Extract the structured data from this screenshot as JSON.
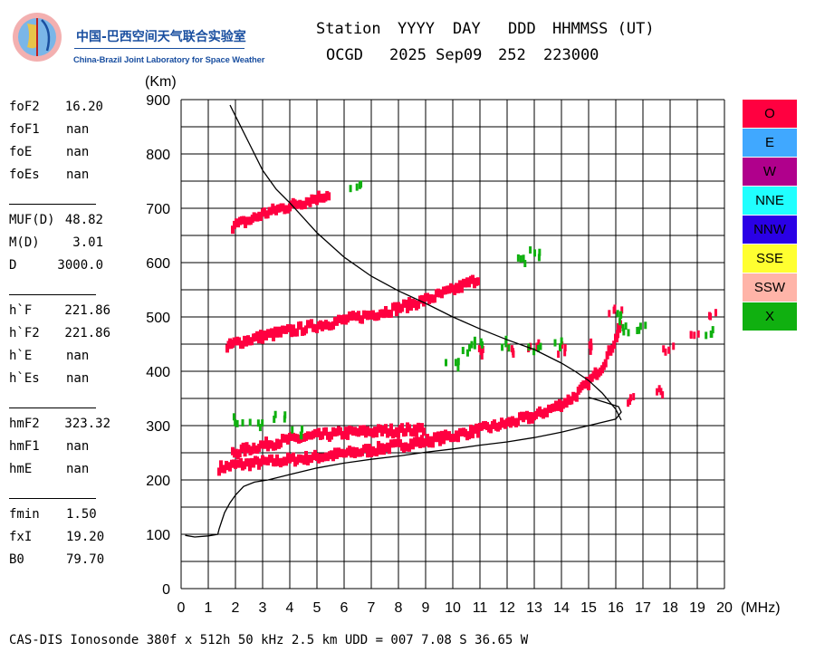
{
  "logo": {
    "cn_text": "中国-巴西空间天气联合实验室",
    "en_text": "China-Brazil Joint Laboratory for Space Weather"
  },
  "header": {
    "station_label": "Station",
    "year_label": "YYYY",
    "day_label": "DAY",
    "ddd_label": "DDD",
    "time_label": "HHMMSS (UT)",
    "station": "OCGD",
    "date": "2025 Sep09",
    "doy": "252",
    "time": "223000"
  },
  "params": {
    "foF2": {
      "label": "foF2",
      "value": "16.20"
    },
    "foF1": {
      "label": "foF1",
      "value": "nan"
    },
    "foE": {
      "label": "foE",
      "value": "nan"
    },
    "foEs": {
      "label": "foEs",
      "value": "nan"
    },
    "MUF": {
      "label": "MUF(D)",
      "value": "48.82"
    },
    "MD": {
      "label": "M(D)",
      "value": "3.01"
    },
    "D": {
      "label": "D",
      "value": "3000.0"
    },
    "hF": {
      "label": "h`F",
      "value": "221.86"
    },
    "hF2": {
      "label": "h`F2",
      "value": "221.86"
    },
    "hE": {
      "label": "h`E",
      "value": "nan"
    },
    "hEs": {
      "label": "h`Es",
      "value": "nan"
    },
    "hmF2": {
      "label": "hmF2",
      "value": "323.32"
    },
    "hmF1": {
      "label": "hmF1",
      "value": "nan"
    },
    "hmE": {
      "label": "hmE",
      "value": "nan"
    },
    "fmin": {
      "label": "fmin",
      "value": "1.50"
    },
    "fxI": {
      "label": "fxI",
      "value": "19.20"
    },
    "B0": {
      "label": "B0",
      "value": "79.70"
    }
  },
  "legend": [
    {
      "label": "O",
      "color": "#ff0040"
    },
    {
      "label": "E",
      "color": "#40a8ff"
    },
    {
      "label": "W",
      "color": "#b0008c"
    },
    {
      "label": "NNE",
      "color": "#20ffff"
    },
    {
      "label": "NNW",
      "color": "#2a00e6"
    },
    {
      "label": "SSE",
      "color": "#ffff30"
    },
    {
      "label": "SSW",
      "color": "#ffb4a8"
    },
    {
      "label": "X",
      "color": "#10b010"
    }
  ],
  "footer": "CAS-DIS Ionosonde 380f x 512h 50 kHz 2.5 km UDD = 007 7.08 S 36.65 W",
  "chart_data": {
    "type": "scatter",
    "title": "",
    "xlabel": "(MHz)",
    "ylabel": "(Km)",
    "xlim": [
      0,
      20
    ],
    "ylim": [
      0,
      900
    ],
    "xticks": [
      "0",
      "1",
      "2",
      "3",
      "4",
      "5",
      "6",
      "7",
      "8",
      "9",
      "10",
      "11",
      "12",
      "13",
      "14",
      "15",
      "16",
      "17",
      "18",
      "19",
      "20"
    ],
    "yticks": [
      "0",
      "100",
      "200",
      "300",
      "400",
      "500",
      "600",
      "700",
      "800",
      "900"
    ],
    "grid": true,
    "legend_position": "right",
    "series": [
      {
        "name": "O",
        "color": "#ff0040",
        "point_sets": [
          {
            "comment": "O-mode F trace",
            "points": [
              [
                1.4,
                223
              ],
              [
                2,
                228
              ],
              [
                3,
                233
              ],
              [
                4,
                238
              ],
              [
                5,
                243
              ],
              [
                6,
                249
              ],
              [
                7,
                256
              ],
              [
                8,
                264
              ],
              [
                9,
                272
              ],
              [
                10,
                282
              ],
              [
                11,
                293
              ],
              [
                12,
                305
              ],
              [
                13,
                318
              ],
              [
                14,
                340
              ],
              [
                14.5,
                355
              ],
              [
                15,
                380
              ],
              [
                15.5,
                410
              ],
              [
                16,
                460
              ],
              [
                16.2,
                490
              ]
            ]
          },
          {
            "comment": "upper F echo",
            "points": [
              [
                1.9,
                250
              ],
              [
                3,
                265
              ],
              [
                4,
                275
              ],
              [
                5,
                282
              ],
              [
                6,
                287
              ],
              [
                7,
                290
              ],
              [
                8,
                292
              ],
              [
                9,
                295
              ]
            ]
          },
          {
            "comment": "multiple hop 2F",
            "points": [
              [
                1.7,
                445
              ],
              [
                2,
                453
              ],
              [
                3,
                465
              ],
              [
                4,
                475
              ],
              [
                5,
                485
              ],
              [
                6,
                495
              ],
              [
                7,
                505
              ],
              [
                8,
                517
              ],
              [
                9,
                532
              ],
              [
                10,
                550
              ],
              [
                11,
                572
              ]
            ]
          },
          {
            "comment": "3F",
            "points": [
              [
                1.9,
                668
              ],
              [
                2.5,
                678
              ],
              [
                3,
                690
              ],
              [
                3.5,
                698
              ],
              [
                4,
                705
              ],
              [
                4.5,
                712
              ],
              [
                5,
                720
              ],
              [
                5.5,
                728
              ]
            ]
          },
          {
            "comment": "spread clusters",
            "points": [
              [
                11,
                435
              ],
              [
                12,
                440
              ],
              [
                13,
                445
              ],
              [
                14,
                440
              ],
              [
                15,
                445
              ],
              [
                16.5,
                350
              ],
              [
                17.5,
                360
              ],
              [
                18,
                440
              ],
              [
                19,
                470
              ],
              [
                19.5,
                500
              ],
              [
                16,
                510
              ]
            ]
          }
        ]
      },
      {
        "name": "X",
        "color": "#10b010",
        "point_sets": [
          {
            "comment": "X-mode scattered points",
            "points": [
              [
                2.2,
                310
              ],
              [
                2.8,
                300
              ],
              [
                3.6,
                320
              ],
              [
                4.3,
                290
              ],
              [
                10.5,
                440
              ],
              [
                11,
                450
              ],
              [
                12,
                450
              ],
              [
                13,
                445
              ],
              [
                14,
                450
              ],
              [
                16,
                500
              ],
              [
                16.5,
                480
              ],
              [
                17,
                480
              ],
              [
                19.5,
                470
              ],
              [
                12.5,
                600
              ],
              [
                13,
                615
              ],
              [
                6.5,
                740
              ],
              [
                10,
                415
              ]
            ]
          }
        ]
      }
    ],
    "model_profile": {
      "name": "profile",
      "points": [
        [
          1.8,
          890
        ],
        [
          2.5,
          820
        ],
        [
          3,
          770
        ],
        [
          3.5,
          735
        ],
        [
          4,
          710
        ],
        [
          5,
          655
        ],
        [
          6,
          610
        ],
        [
          7,
          575
        ],
        [
          8,
          548
        ],
        [
          9,
          525
        ],
        [
          10,
          500
        ],
        [
          11,
          478
        ],
        [
          12,
          458
        ],
        [
          13,
          440
        ],
        [
          14,
          415
        ],
        [
          14.5,
          400
        ],
        [
          15,
          383
        ],
        [
          15.5,
          360
        ],
        [
          16,
          330
        ],
        [
          16.2,
          310
        ]
      ]
    },
    "true_height": {
      "name": "true height",
      "points": [
        [
          0.15,
          98
        ],
        [
          0.5,
          95
        ],
        [
          1,
          97
        ],
        [
          1.35,
          100
        ],
        [
          1.4,
          110
        ],
        [
          1.5,
          125
        ],
        [
          1.6,
          140
        ],
        [
          1.8,
          158
        ],
        [
          2,
          172
        ],
        [
          2.3,
          188
        ],
        [
          2.7,
          196
        ],
        [
          3.2,
          200
        ],
        [
          4,
          210
        ],
        [
          5,
          222
        ],
        [
          6,
          231
        ],
        [
          7,
          238
        ],
        [
          8,
          244
        ],
        [
          9,
          251
        ],
        [
          10,
          257
        ],
        [
          11,
          264
        ],
        [
          12,
          270
        ],
        [
          13,
          278
        ],
        [
          14,
          288
        ],
        [
          15,
          300
        ],
        [
          16,
          312
        ],
        [
          16.2,
          325
        ],
        [
          16.1,
          335
        ],
        [
          15.6,
          343
        ],
        [
          15,
          352
        ]
      ]
    }
  }
}
